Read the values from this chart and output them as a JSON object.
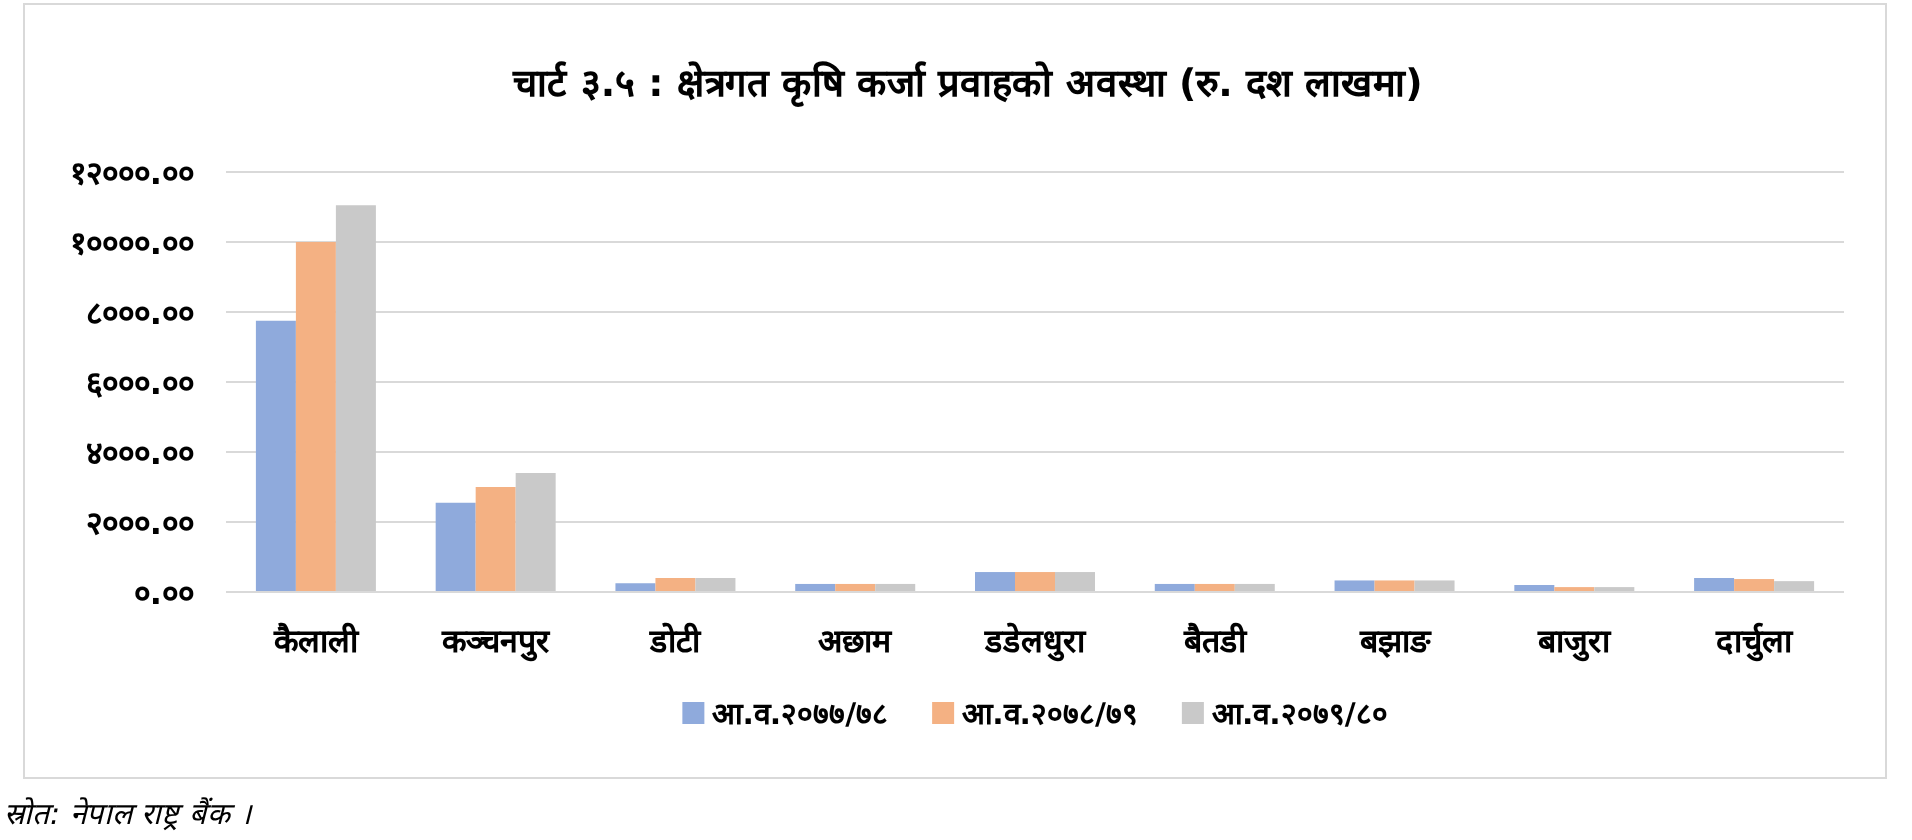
{
  "chart_data": {
    "type": "bar",
    "title": "चार्ट ३.५ : क्षेत्रगत कृषि कर्जा प्रवाहको अवस्था (रु. दश लाखमा)",
    "categories": [
      "कैलाली",
      "कञ्चनपुर",
      "डोटी",
      "अछाम",
      "डडेलधुरा",
      "बैतडी",
      "बझाङ",
      "बाजुरा",
      "दार्चुला"
    ],
    "series": [
      {
        "name": "आ.व.२०७७/७८",
        "color": "#8faadc",
        "values": [
          7750,
          2550,
          250,
          230,
          570,
          230,
          330,
          200,
          400
        ]
      },
      {
        "name": "आ.व.२०७८/७९",
        "color": "#f4b183",
        "values": [
          10000,
          3000,
          400,
          230,
          570,
          230,
          330,
          140,
          370
        ]
      },
      {
        "name": "आ.व.२०७९/८०",
        "color": "#c9c9c9",
        "values": [
          11050,
          3400,
          400,
          230,
          570,
          230,
          330,
          140,
          310
        ]
      }
    ],
    "ylim": [
      0,
      12000
    ],
    "yticks": [
      {
        "value": 0,
        "label": "०.००"
      },
      {
        "value": 2000,
        "label": "२०००.००"
      },
      {
        "value": 4000,
        "label": "४०००.००"
      },
      {
        "value": 6000,
        "label": "६०००.००"
      },
      {
        "value": 8000,
        "label": "८०००.००"
      },
      {
        "value": 10000,
        "label": "१००००.००"
      },
      {
        "value": 12000,
        "label": "१२०००.००"
      }
    ],
    "grid": "y",
    "legend": "bottom",
    "annotations": [
      "स्रोत: नेपाल राष्ट्र बैंक ।"
    ]
  }
}
